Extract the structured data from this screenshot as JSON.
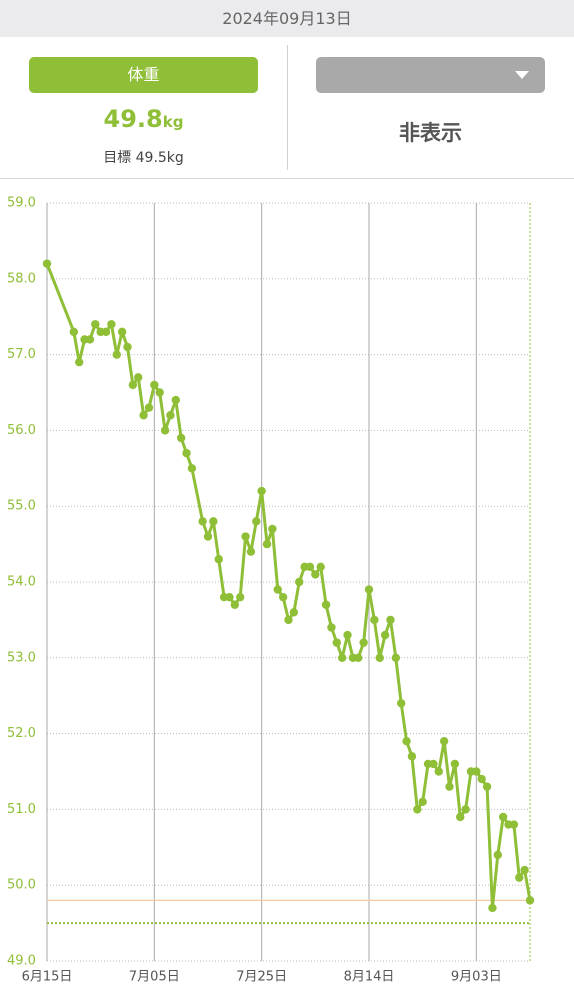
{
  "panel": {
    "date": "2024年09月13日",
    "left_button": "体重",
    "value": "49.8",
    "unit": "kg",
    "goal": "目標 49.5kg",
    "right_label": "非表示"
  },
  "chart_data": {
    "type": "line",
    "color": "#8fbe37",
    "x": [
      "06-15",
      "06-20",
      "06-21",
      "06-22",
      "06-23",
      "06-24",
      "06-25",
      "06-26",
      "06-27",
      "06-28",
      "06-29",
      "06-30",
      "07-01",
      "07-02",
      "07-03",
      "07-04",
      "07-05",
      "07-06",
      "07-07",
      "07-08",
      "07-09",
      "07-10",
      "07-11",
      "07-12",
      "07-14",
      "07-15",
      "07-16",
      "07-17",
      "07-18",
      "07-19",
      "07-20",
      "07-21",
      "07-22",
      "07-23",
      "07-24",
      "07-25",
      "07-26",
      "07-27",
      "07-28",
      "07-29",
      "07-30",
      "07-31",
      "08-01",
      "08-02",
      "08-03",
      "08-04",
      "08-05",
      "08-06",
      "08-07",
      "08-08",
      "08-09",
      "08-10",
      "08-11",
      "08-12",
      "08-13",
      "08-14",
      "08-15",
      "08-16",
      "08-17",
      "08-18",
      "08-19",
      "08-20",
      "08-21",
      "08-22",
      "08-23",
      "08-24",
      "08-25",
      "08-26",
      "08-27",
      "08-28",
      "08-29",
      "08-30",
      "08-31",
      "09-01",
      "09-02",
      "09-03",
      "09-04",
      "09-05",
      "09-06",
      "09-07",
      "09-08",
      "09-09",
      "09-10",
      "09-11",
      "09-12",
      "09-13"
    ],
    "values": [
      58.2,
      57.3,
      56.9,
      57.2,
      57.2,
      57.4,
      57.3,
      57.3,
      57.4,
      57.0,
      57.3,
      57.1,
      56.6,
      56.7,
      56.2,
      56.3,
      56.6,
      56.5,
      56.0,
      56.2,
      56.4,
      55.9,
      55.7,
      55.5,
      54.8,
      54.6,
      54.8,
      54.3,
      53.8,
      53.8,
      53.7,
      53.8,
      54.6,
      54.4,
      54.8,
      55.2,
      54.5,
      54.7,
      53.9,
      53.8,
      53.5,
      53.6,
      54.0,
      54.2,
      54.2,
      54.1,
      54.2,
      53.7,
      53.4,
      53.2,
      53.0,
      53.3,
      53.0,
      53.0,
      53.2,
      53.9,
      53.5,
      53.0,
      53.3,
      53.5,
      53.0,
      52.4,
      51.9,
      51.7,
      51.0,
      51.1,
      51.6,
      51.6,
      51.5,
      51.9,
      51.3,
      51.6,
      50.9,
      51.0,
      51.5,
      51.5,
      51.4,
      51.3,
      49.7,
      50.4,
      50.9,
      50.8,
      50.8,
      50.1,
      50.2,
      49.8
    ],
    "xlim": [
      "06-15",
      "09-13"
    ],
    "xticks": [
      {
        "value": "06-15",
        "label": "6月15日"
      },
      {
        "value": "07-05",
        "label": "7月05日"
      },
      {
        "value": "07-25",
        "label": "7月25日"
      },
      {
        "value": "08-14",
        "label": "8月14日"
      },
      {
        "value": "09-03",
        "label": "9月03日"
      }
    ],
    "ylim": [
      49,
      59
    ],
    "yticks": [
      {
        "value": 49,
        "label": "49.0"
      },
      {
        "value": 50,
        "label": "50.0"
      },
      {
        "value": 51,
        "label": "51.0"
      },
      {
        "value": 52,
        "label": "52.0"
      },
      {
        "value": 53,
        "label": "53.0"
      },
      {
        "value": 54,
        "label": "54.0"
      },
      {
        "value": 55,
        "label": "55.0"
      },
      {
        "value": 56,
        "label": "56.0"
      },
      {
        "value": 57,
        "label": "57.0"
      },
      {
        "value": 58,
        "label": "58.0"
      },
      {
        "value": 59,
        "label": "59.0"
      }
    ],
    "reference_lines": [
      {
        "value": 49.8,
        "color": "#f7c9a1",
        "style": "solid"
      },
      {
        "value": 49.5,
        "color": "#8fbe37",
        "style": "dotted"
      }
    ],
    "grid": true
  }
}
